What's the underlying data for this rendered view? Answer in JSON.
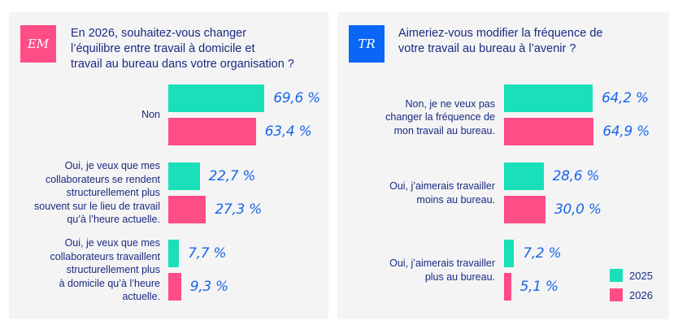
{
  "chart_data": [
    {
      "type": "bar",
      "orientation": "horizontal",
      "badge": "EM",
      "title_lines": [
        "En 2026, souhaitez-vous changer",
        "l’équilibre entre travail à domicile et",
        "travail au bureau dans votre organisation ?"
      ],
      "categories": [
        {
          "label_lines": [
            "Non"
          ]
        },
        {
          "label_lines": [
            "Oui, je veux que mes",
            "collaborateurs se rendent",
            "structurellement plus",
            "souvent sur le lieu de travail",
            "qu’à l’heure actuelle."
          ]
        },
        {
          "label_lines": [
            "Oui, je veux que mes",
            "collaborateurs travaillent",
            "structurellement plus",
            "à domicile qu’à l’heure",
            "actuelle."
          ]
        }
      ],
      "series": [
        {
          "name": "2025",
          "values": [
            69.6,
            22.7,
            7.7
          ],
          "labels": [
            "69,6 %",
            "22,7 %",
            "7,7 %"
          ]
        },
        {
          "name": "2026",
          "values": [
            63.4,
            27.3,
            9.3
          ],
          "labels": [
            "63,4 %",
            "27,3 %",
            "9,3 %"
          ]
        }
      ],
      "unit": "%",
      "xlim": [
        0,
        100
      ],
      "grid": false
    },
    {
      "type": "bar",
      "orientation": "horizontal",
      "badge": "TR",
      "title_lines": [
        "Aimeriez-vous modifier la fréquence de",
        "votre travail au bureau à l’avenir ?"
      ],
      "categories": [
        {
          "label_lines": [
            "Non, je ne veux pas",
            "changer la fréquence de",
            "mon travail au bureau."
          ]
        },
        {
          "label_lines": [
            "Oui, j’aimerais travailler",
            "moins au bureau."
          ]
        },
        {
          "label_lines": [
            "Oui, j’aimerais travailler",
            "plus au bureau."
          ]
        }
      ],
      "series": [
        {
          "name": "2025",
          "values": [
            64.2,
            28.6,
            7.2
          ],
          "labels": [
            "64,2 %",
            "28,6 %",
            "7,2 %"
          ]
        },
        {
          "name": "2026",
          "values": [
            64.9,
            30.0,
            5.1
          ],
          "labels": [
            "64,9 %",
            "30,0 %",
            "5,1 %"
          ]
        }
      ],
      "unit": "%",
      "xlim": [
        0,
        100
      ],
      "grid": false,
      "legend": "bottom-right"
    }
  ],
  "colors": {
    "series_2025": "#19e0b9",
    "series_2026": "#ff4d86",
    "badge_em": "#ff4d86",
    "badge_tr": "#0a66f5",
    "title_text": "#1a2a80",
    "value_text": "#1a66e6",
    "panel_bg": "#f4f4f5"
  },
  "legend": {
    "items": [
      {
        "label": "2025"
      },
      {
        "label": "2026"
      }
    ]
  }
}
